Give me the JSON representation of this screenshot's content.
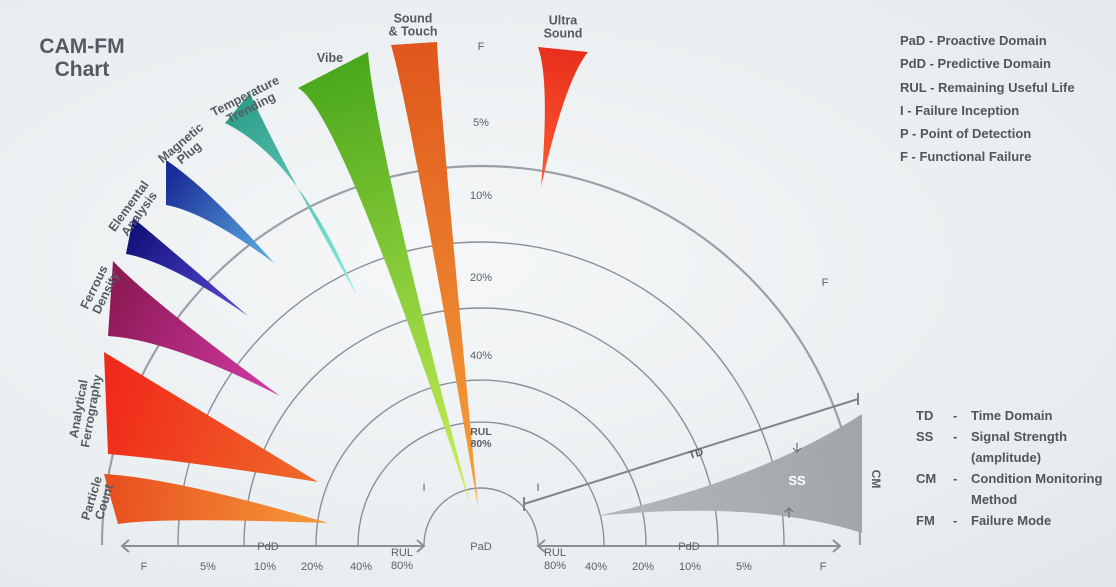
{
  "title": [
    "CAM-FM",
    "Chart"
  ],
  "legend_top": [
    "PaD - Proactive Domain",
    "PdD - Predictive Domain",
    "RUL - Remaining Useful Life",
    "I - Failure Inception",
    "P - Point of Detection",
    "F - Functional Failure"
  ],
  "legend_bottom": [
    {
      "key": "TD",
      "dash": "-",
      "desc": "Time Domain"
    },
    {
      "key": "SS",
      "dash": "-",
      "desc": "Signal Strength",
      "desc2": "(amplitude)"
    },
    {
      "key": "CM",
      "dash": "-",
      "desc": "Condition Monitoring",
      "desc2": "Method"
    },
    {
      "key": "FM",
      "dash": "-",
      "desc": "Failure Mode"
    }
  ],
  "methods": [
    {
      "label": [
        "Particle",
        "Count"
      ],
      "color_outer": "#e8501f",
      "color_inner": "#f59a3a"
    },
    {
      "label": [
        "Analytical",
        "Ferrography"
      ],
      "color_outer": "#f02a1a",
      "color_inner": "#ef6a2a"
    },
    {
      "label": [
        "Ferrous",
        "Density"
      ],
      "color_outer": "#8e1a56",
      "color_inner": "#d43ba8"
    },
    {
      "label": [
        "Elemental",
        "Analysis"
      ],
      "color_outer": "#12127a",
      "color_inner": "#5a4cd8"
    },
    {
      "label": [
        "Magnetic",
        "Plug"
      ],
      "color_outer": "#1a2c96",
      "color_inner": "#5fb2e6"
    },
    {
      "label": [
        "Temperature",
        "Trending"
      ],
      "color_outer": "#2e9e8a",
      "color_inner": "#8df0e6"
    },
    {
      "label": [
        "Vibe"
      ],
      "color_outer": "#4aa81c",
      "color_inner": "#cdf25a"
    },
    {
      "label": [
        "Sound",
        "& Touch"
      ],
      "color_outer": "#e0561c",
      "color_inner": "#f5a33a"
    },
    {
      "label": [
        "Ultra",
        "Sound"
      ],
      "color_outer": "#e8301c",
      "color_inner": "#ff5a32"
    }
  ],
  "ring_labels": [
    "F",
    "5%",
    "10%",
    "20%",
    "40%"
  ],
  "rul_label": [
    "RUL",
    "80%"
  ],
  "inception_label": "I",
  "pad_label": "PaD",
  "f_side_label": "F",
  "axis_left": [
    "F",
    "5%",
    "10%",
    "20%",
    "40%"
  ],
  "axis_right": [
    "40%",
    "20%",
    "10%",
    "5%",
    "F"
  ],
  "axis_rul": [
    "RUL",
    "80%"
  ],
  "axis_pdd": "PdD",
  "td_label": "TD",
  "ss_label": "SS",
  "cm_label": "CM",
  "colors": {
    "ring": "#8a9096",
    "text": "#5a6166",
    "ss_fill": "#a3a6a8"
  }
}
